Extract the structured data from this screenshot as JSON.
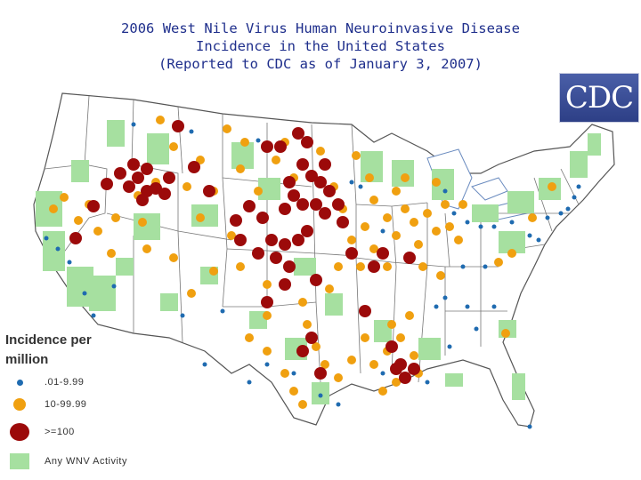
{
  "title": {
    "line1": "2006 West Nile Virus Human Neuroinvasive Disease",
    "line2": "Incidence in the United States",
    "line3": "(Reported to CDC as of January 3, 2007)"
  },
  "logo": {
    "text": "CDC"
  },
  "colors": {
    "low": "#1f6bb0",
    "mid": "#f0a010",
    "high": "#9c0a0a",
    "activity": "#a6e0a0",
    "land": "#ffffff",
    "borders": "#555555"
  },
  "legend": {
    "title_line1": "Incidence per",
    "title_line2": "million",
    "items": [
      {
        "label": ".01-9.99",
        "symbol": "small-blue-dot"
      },
      {
        "label": "10-99.99",
        "symbol": "orange-dot"
      },
      {
        "label": ">=100",
        "symbol": "dark-red-dot"
      },
      {
        "label": "Any WNV Activity",
        "symbol": "green-square"
      }
    ]
  }
}
